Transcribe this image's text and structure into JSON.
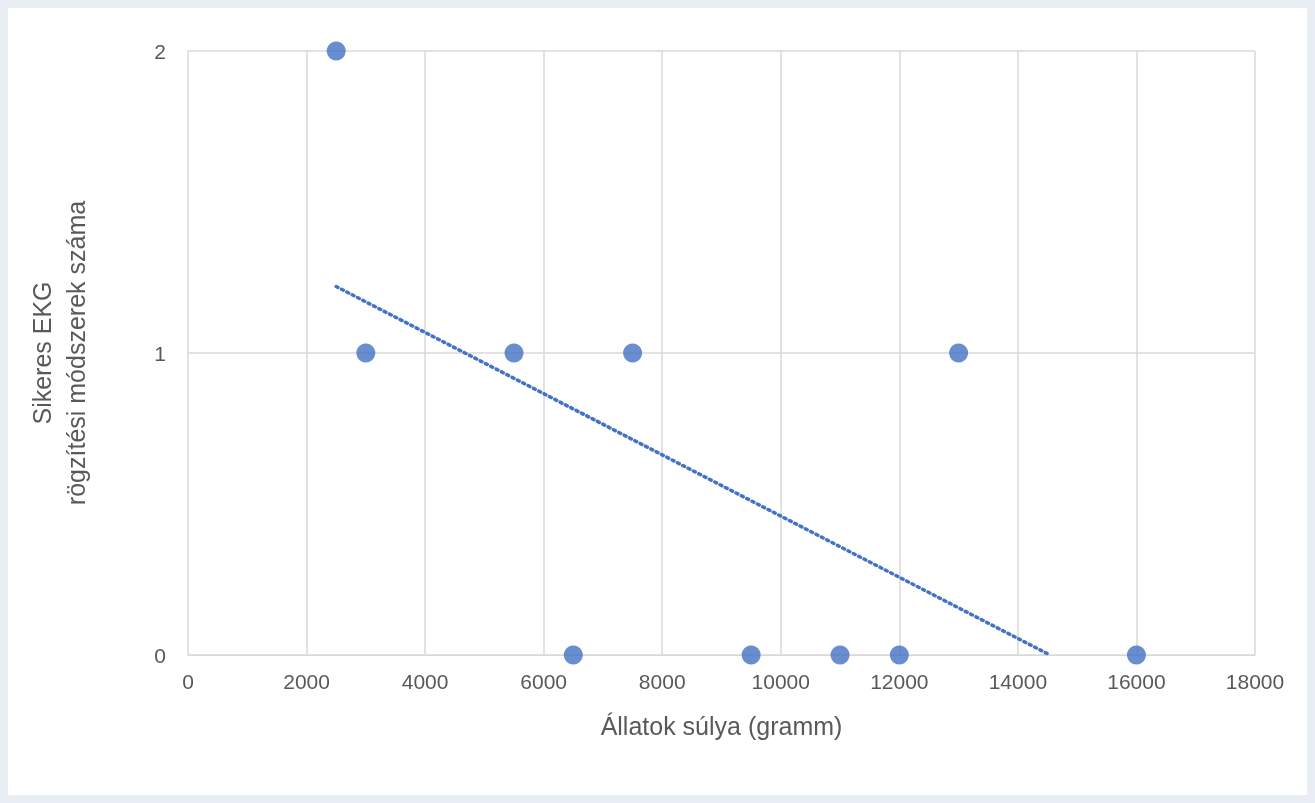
{
  "chart_data": {
    "type": "scatter",
    "xlabel": "Állatok súlya (gramm)",
    "ylabel": "Sikeres EKG\nrögzítési módszerek száma",
    "xlim": [
      0,
      18000
    ],
    "xticks": [
      0,
      2000,
      4000,
      6000,
      8000,
      10000,
      12000,
      14000,
      16000,
      18000
    ],
    "ylim": [
      0,
      2
    ],
    "yticks": [
      0,
      1,
      2
    ],
    "grid": true,
    "marker": "circle",
    "series": [
      {
        "color": "#4472c4",
        "x": [
          2500,
          3000,
          5500,
          6500,
          7500,
          9500,
          11000,
          12000,
          13000,
          16000
        ],
        "values": [
          2,
          1,
          1,
          0,
          1,
          0,
          0,
          0,
          1,
          0
        ]
      },
      {
        "type": "line",
        "color": "#4472c4",
        "line_style": "dotted",
        "marker": "none",
        "x": [
          2500,
          14540
        ],
        "values": [
          1.22,
          0
        ]
      }
    ]
  }
}
